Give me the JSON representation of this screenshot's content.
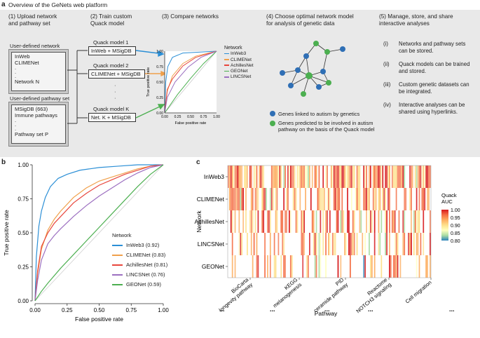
{
  "panel_a": {
    "letter": "a",
    "title": "Overview of the GeNets web platform",
    "step1": {
      "title": "(1) Upload network\nand pathway set",
      "network_label": "User-defined network",
      "network_items": [
        "InWeb",
        "CLIMENet",
        ".",
        ".",
        ".",
        "Network N"
      ],
      "pathway_label": "User-defined pathway set",
      "pathway_items": [
        "MSigDB (663)",
        "Immune pathways",
        ".",
        ".",
        ".",
        "Pathway set P"
      ]
    },
    "step2": {
      "title": "(2) Train custom\nQuack model",
      "models": [
        {
          "label": "Quack model 1",
          "box": "InWeb + MSigDB"
        },
        {
          "label": "Quack model 2",
          "box": "CLIMENet + MSigDB"
        },
        {
          "label": "Quack model K",
          "box": "Net. K + MSigDB"
        }
      ],
      "dots": [
        "·",
        "·",
        "·"
      ]
    },
    "step3": {
      "title": "(3) Compare networks",
      "ylabel": "True positive rate",
      "xlabel": "False positive rate",
      "yticks": [
        "1.00",
        "0.75",
        "0.50",
        "0.25",
        "0.00"
      ],
      "xticks": [
        "0.00",
        "0.25",
        "0.50",
        "0.75",
        "1.00"
      ],
      "legend_title": "Network",
      "legend": [
        {
          "name": "InWeb3",
          "color": "#2b8fd6"
        },
        {
          "name": "CLIMENet",
          "color": "#f0a04b"
        },
        {
          "name": "AchillesNet",
          "color": "#e8463c"
        },
        {
          "name": "GEONet",
          "color": "#4caf50"
        },
        {
          "name": "LINCSNet",
          "color": "#9c6fc0"
        }
      ]
    },
    "step4": {
      "title": "(4) Choose optimal network model\nfor analysis of genetic data",
      "legend_blue": "Genes linked to autism by genetics",
      "legend_green": "Genes predicted to be involved in autism\npathway on the basis of the Quack model",
      "blue_color": "#2f6fb5",
      "green_color": "#4caf50"
    },
    "step5": {
      "title": "(5) Manage, store, and share\ninteractive analyses",
      "items": [
        {
          "num": "(i)",
          "text": "Networks and pathway sets\ncan be stored."
        },
        {
          "num": "(ii)",
          "text": "Quack models can be trained\nand stored."
        },
        {
          "num": "(iii)",
          "text": "Custom genetic datasets can\nbe integrated."
        },
        {
          "num": "(iv)",
          "text": "Interactive analyses can be\nshared using hyperlinks."
        }
      ]
    }
  },
  "panel_b": {
    "letter": "b",
    "chart_data": {
      "type": "line",
      "title": "",
      "xlabel": "False positive rate",
      "ylabel": "True positive rate",
      "xlim": [
        0,
        1
      ],
      "ylim": [
        0,
        1
      ],
      "xticks": [
        "0.00",
        "0.25",
        "0.50",
        "0.75",
        "1.00"
      ],
      "yticks": [
        "0.00",
        "0.25",
        "0.50",
        "0.75",
        "1.00"
      ],
      "legend_title": "Network",
      "series": [
        {
          "name": "InWeb3 (0.92)",
          "color": "#2b8fd6",
          "x": [
            0,
            0.01,
            0.03,
            0.05,
            0.08,
            0.12,
            0.18,
            0.25,
            0.35,
            0.5,
            0.65,
            0.8,
            1.0
          ],
          "y": [
            0,
            0.32,
            0.55,
            0.66,
            0.76,
            0.84,
            0.9,
            0.93,
            0.96,
            0.98,
            0.99,
            1.0,
            1.0
          ]
        },
        {
          "name": "CLIMENet (0.83)",
          "color": "#f0a04b",
          "x": [
            0,
            0.02,
            0.05,
            0.1,
            0.15,
            0.2,
            0.3,
            0.4,
            0.5,
            0.6,
            0.7,
            0.8,
            0.9,
            1.0
          ],
          "y": [
            0,
            0.2,
            0.38,
            0.52,
            0.6,
            0.66,
            0.76,
            0.83,
            0.88,
            0.91,
            0.94,
            0.97,
            0.99,
            1.0
          ]
        },
        {
          "name": "AchillesNet (0.81)",
          "color": "#e8463c",
          "x": [
            0,
            0.02,
            0.05,
            0.1,
            0.15,
            0.2,
            0.3,
            0.4,
            0.5,
            0.6,
            0.7,
            0.8,
            0.9,
            1.0
          ],
          "y": [
            0,
            0.22,
            0.4,
            0.5,
            0.57,
            0.62,
            0.72,
            0.79,
            0.85,
            0.89,
            0.93,
            0.96,
            0.99,
            1.0
          ]
        },
        {
          "name": "LINCSNet (0.76)",
          "color": "#9c6fc0",
          "x": [
            0,
            0.02,
            0.05,
            0.1,
            0.15,
            0.2,
            0.3,
            0.4,
            0.5,
            0.6,
            0.7,
            0.8,
            0.9,
            1.0
          ],
          "y": [
            0,
            0.15,
            0.3,
            0.42,
            0.48,
            0.53,
            0.62,
            0.7,
            0.77,
            0.83,
            0.89,
            0.94,
            0.98,
            1.0
          ]
        },
        {
          "name": "GEONet (0.59)",
          "color": "#4caf50",
          "x": [
            0,
            0.05,
            0.1,
            0.2,
            0.3,
            0.4,
            0.5,
            0.6,
            0.7,
            0.8,
            0.9,
            1.0
          ],
          "y": [
            0,
            0.07,
            0.13,
            0.24,
            0.34,
            0.44,
            0.54,
            0.64,
            0.74,
            0.84,
            0.93,
            1.0
          ]
        }
      ]
    }
  },
  "panel_c": {
    "letter": "c",
    "chart_data": {
      "type": "heatmap",
      "ylabel": "Network",
      "xlabel": "Pathway",
      "rows": [
        "InWeb3",
        "CLIMENet",
        "AchillesNet",
        "LINCSNet",
        "GEONet"
      ],
      "columns": [
        "BioCarta longevity pathway",
        "KEGG melanogenesis",
        "PID ceramide pathway",
        "Reactome NOTCH3 signaling",
        "Cell migration"
      ],
      "column_labels_line1": [
        "BioCarta",
        "KEGG",
        "PID",
        "Reactome",
        "Cell migration"
      ],
      "column_labels_line2": [
        "longevity pathway",
        "melanogenesis",
        "ceramide pathway",
        "NOTCH3 signaling",
        ""
      ],
      "ellipsis": "...",
      "colorbar_title": "Quack\nAUC",
      "colorbar_ticks": [
        "1.00",
        "0.95",
        "0.90",
        "0.85",
        "0.80"
      ],
      "colorbar_range": [
        0.8,
        1.0
      ],
      "colorbar_colors": [
        "#d7191c",
        "#f46d43",
        "#fdae61",
        "#fee08b",
        "#ffffbf",
        "#abdda4",
        "#2b83ba"
      ]
    }
  }
}
